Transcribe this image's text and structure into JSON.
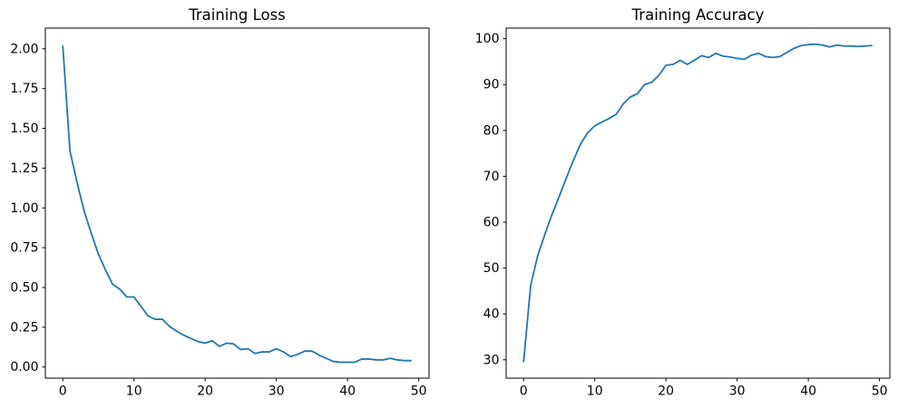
{
  "figure": {
    "background": "#ffffff",
    "axis_color": "#000000",
    "line_color": "#1f77b4"
  },
  "chart_data": [
    {
      "type": "line",
      "title": "Training Loss",
      "xlabel": "",
      "ylabel": "",
      "grid": false,
      "legend": null,
      "xlim": [
        -2.45,
        51.45
      ],
      "ylim": [
        -0.07,
        2.13
      ],
      "xticks": [
        0,
        10,
        20,
        30,
        40,
        50
      ],
      "xtick_labels": [
        "0",
        "10",
        "20",
        "30",
        "40",
        "50"
      ],
      "yticks": [
        0.0,
        0.25,
        0.5,
        0.75,
        1.0,
        1.25,
        1.5,
        1.75,
        2.0
      ],
      "ytick_labels": [
        "0.00",
        "0.25",
        "0.50",
        "0.75",
        "1.00",
        "1.25",
        "1.50",
        "1.75",
        "2.00"
      ],
      "series": [
        {
          "name": "loss",
          "color": "#1f77b4",
          "x": [
            0,
            1,
            2,
            3,
            4,
            5,
            6,
            7,
            8,
            9,
            10,
            11,
            12,
            13,
            14,
            15,
            16,
            17,
            18,
            19,
            20,
            21,
            22,
            23,
            24,
            25,
            26,
            27,
            28,
            29,
            30,
            31,
            32,
            33,
            34,
            35,
            36,
            37,
            38,
            39,
            40,
            41,
            42,
            43,
            44,
            45,
            46,
            47,
            48,
            49
          ],
          "y": [
            2.02,
            1.36,
            1.16,
            0.98,
            0.84,
            0.71,
            0.61,
            0.52,
            0.49,
            0.44,
            0.44,
            0.38,
            0.32,
            0.3,
            0.3,
            0.255,
            0.225,
            0.2,
            0.18,
            0.16,
            0.15,
            0.165,
            0.13,
            0.15,
            0.145,
            0.11,
            0.115,
            0.085,
            0.095,
            0.095,
            0.115,
            0.095,
            0.065,
            0.08,
            0.1,
            0.1,
            0.075,
            0.055,
            0.035,
            0.03,
            0.03,
            0.03,
            0.05,
            0.05,
            0.045,
            0.045,
            0.055,
            0.045,
            0.04,
            0.04
          ]
        }
      ]
    },
    {
      "type": "line",
      "title": "Training Accuracy",
      "xlabel": "",
      "ylabel": "",
      "grid": false,
      "legend": null,
      "xlim": [
        -2.45,
        51.45
      ],
      "ylim": [
        26.0,
        102.3
      ],
      "xticks": [
        0,
        10,
        20,
        30,
        40,
        50
      ],
      "xtick_labels": [
        "0",
        "10",
        "20",
        "30",
        "40",
        "50"
      ],
      "yticks": [
        30,
        40,
        50,
        60,
        70,
        80,
        90,
        100
      ],
      "ytick_labels": [
        "30",
        "40",
        "50",
        "60",
        "70",
        "80",
        "90",
        "100"
      ],
      "series": [
        {
          "name": "accuracy",
          "color": "#1f77b4",
          "x": [
            0,
            1,
            2,
            3,
            4,
            5,
            6,
            7,
            8,
            9,
            10,
            11,
            12,
            13,
            14,
            15,
            16,
            17,
            18,
            19,
            20,
            21,
            22,
            23,
            24,
            25,
            26,
            27,
            28,
            29,
            30,
            31,
            32,
            33,
            34,
            35,
            36,
            37,
            38,
            39,
            40,
            41,
            42,
            43,
            44,
            45,
            46,
            47,
            48,
            49
          ],
          "y": [
            29.5,
            46.3,
            52.8,
            57.4,
            61.7,
            65.6,
            69.6,
            73.5,
            77.0,
            79.5,
            81.0,
            81.8,
            82.6,
            83.5,
            85.8,
            87.3,
            88.0,
            90.0,
            90.5,
            92.0,
            94.2,
            94.4,
            95.3,
            94.4,
            95.3,
            96.3,
            95.9,
            96.8,
            96.2,
            96.0,
            95.7,
            95.5,
            96.4,
            96.8,
            96.1,
            95.9,
            96.1,
            97.0,
            97.9,
            98.5,
            98.7,
            98.8,
            98.6,
            98.2,
            98.6,
            98.4,
            98.4,
            98.3,
            98.4,
            98.5
          ]
        }
      ]
    }
  ]
}
